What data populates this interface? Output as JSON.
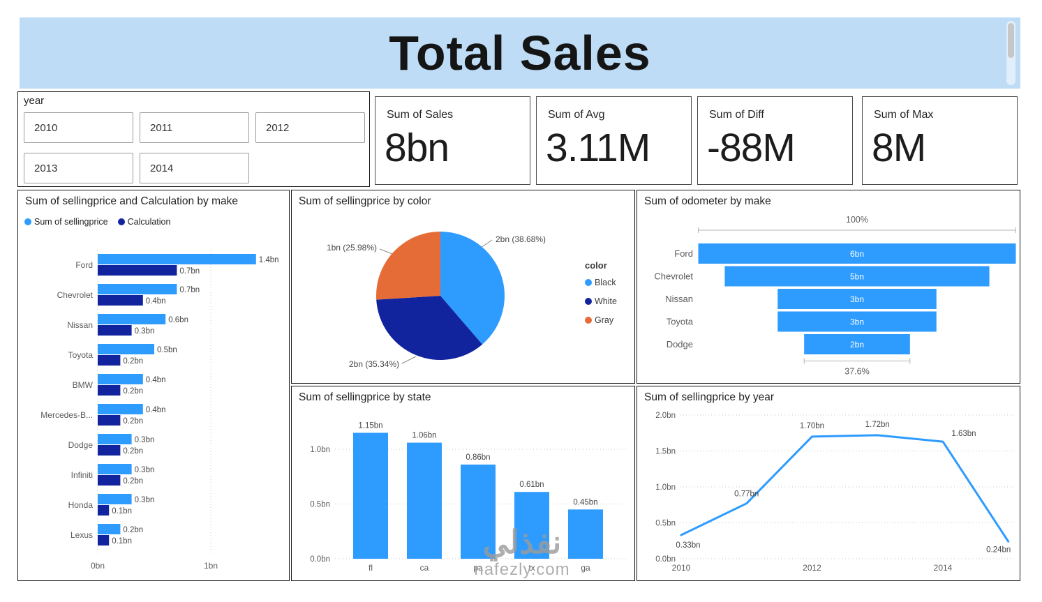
{
  "header": {
    "title": "Total Sales"
  },
  "slicer": {
    "label": "year",
    "options": [
      "2010",
      "2011",
      "2012",
      "2013",
      "2014"
    ]
  },
  "kpis": [
    {
      "label": "Sum of Sales",
      "value": "8bn"
    },
    {
      "label": "Sum of Avg",
      "value": "3.11M"
    },
    {
      "label": "Sum of Diff",
      "value": "-88M"
    },
    {
      "label": "Sum of Max",
      "value": "8M"
    }
  ],
  "watermark": {
    "text_ar": "نفذلي",
    "domain": "nafezly.com"
  },
  "chart_data": [
    {
      "id": "make_bar",
      "type": "bar",
      "orientation": "horizontal",
      "title": "Sum of sellingprice and Calculation by make",
      "categories": [
        "Ford",
        "Chevrolet",
        "Nissan",
        "Toyota",
        "BMW",
        "Mercedes-B...",
        "Dodge",
        "Infiniti",
        "Honda",
        "Lexus"
      ],
      "series": [
        {
          "name": "Sum of sellingprice",
          "color": "#2E9BFF",
          "values": [
            1.4,
            0.7,
            0.6,
            0.5,
            0.4,
            0.4,
            0.3,
            0.3,
            0.3,
            0.2
          ],
          "labels": [
            "1.4bn",
            "0.7bn",
            "0.6bn",
            "0.5bn",
            "0.4bn",
            "0.4bn",
            "0.3bn",
            "0.3bn",
            "0.3bn",
            "0.2bn"
          ]
        },
        {
          "name": "Calculation",
          "color": "#12239E",
          "values": [
            0.7,
            0.4,
            0.3,
            0.2,
            0.2,
            0.2,
            0.2,
            0.2,
            0.1,
            0.1
          ],
          "labels": [
            "0.7bn",
            "0.4bn",
            "0.3bn",
            "0.2bn",
            "0.2bn",
            "0.2bn",
            "0.2bn",
            "0.2bn",
            "0.1bn",
            "0.1bn"
          ]
        }
      ],
      "x_ticks": [
        "0bn",
        "1bn"
      ],
      "xlim": [
        0,
        1.55
      ],
      "grid": "dotted-vertical"
    },
    {
      "id": "color_pie",
      "type": "pie",
      "title": "Sum of sellingprice by color",
      "legend_title": "color",
      "legend_position": "right",
      "slices": [
        {
          "label": "Black",
          "value_label": "2bn (38.68%)",
          "pct": 38.68,
          "color": "#2E9BFF"
        },
        {
          "label": "White",
          "value_label": "2bn (35.34%)",
          "pct": 35.34,
          "color": "#12239E"
        },
        {
          "label": "Gray",
          "value_label": "1bn (25.98%)",
          "pct": 25.98,
          "color": "#E66C37"
        }
      ]
    },
    {
      "id": "odometer_funnel",
      "type": "funnel",
      "title": "Sum of odometer by make",
      "categories": [
        "Ford",
        "Chevrolet",
        "Nissan",
        "Toyota",
        "Dodge"
      ],
      "values": [
        6,
        5,
        3,
        3,
        2
      ],
      "labels": [
        "6bn",
        "5bn",
        "3bn",
        "3bn",
        "2bn"
      ],
      "top_label": "100%",
      "bottom_label": "37.6%",
      "color": "#2E9BFF"
    },
    {
      "id": "state_bar",
      "type": "bar",
      "orientation": "vertical",
      "title": "Sum of sellingprice by state",
      "categories": [
        "fl",
        "ca",
        "pa",
        "tx",
        "ga"
      ],
      "values": [
        1.15,
        1.06,
        0.86,
        0.61,
        0.45
      ],
      "labels": [
        "1.15bn",
        "1.06bn",
        "0.86bn",
        "0.61bn",
        "0.45bn"
      ],
      "y_ticks": [
        "0.0bn",
        "0.5bn",
        "1.0bn"
      ],
      "ylim": [
        0,
        1.3
      ],
      "color": "#2E9BFF",
      "grid": "dotted-horizontal"
    },
    {
      "id": "year_line",
      "type": "line",
      "title": "Sum of sellingprice by year",
      "x": [
        2010,
        2011,
        2012,
        2013,
        2014,
        2015
      ],
      "values": [
        0.33,
        0.77,
        1.7,
        1.72,
        1.63,
        0.24
      ],
      "labels": [
        "0.33bn",
        "0.77bn",
        "1.70bn",
        "1.72bn",
        "1.63bn",
        "0.24bn"
      ],
      "x_ticks": [
        "2010",
        "2012",
        "2014"
      ],
      "y_ticks": [
        "0.0bn",
        "0.5bn",
        "1.0bn",
        "1.5bn",
        "2.0bn"
      ],
      "ylim": [
        0,
        2.0
      ],
      "color": "#2E9BFF",
      "grid": "dotted-horizontal"
    }
  ]
}
